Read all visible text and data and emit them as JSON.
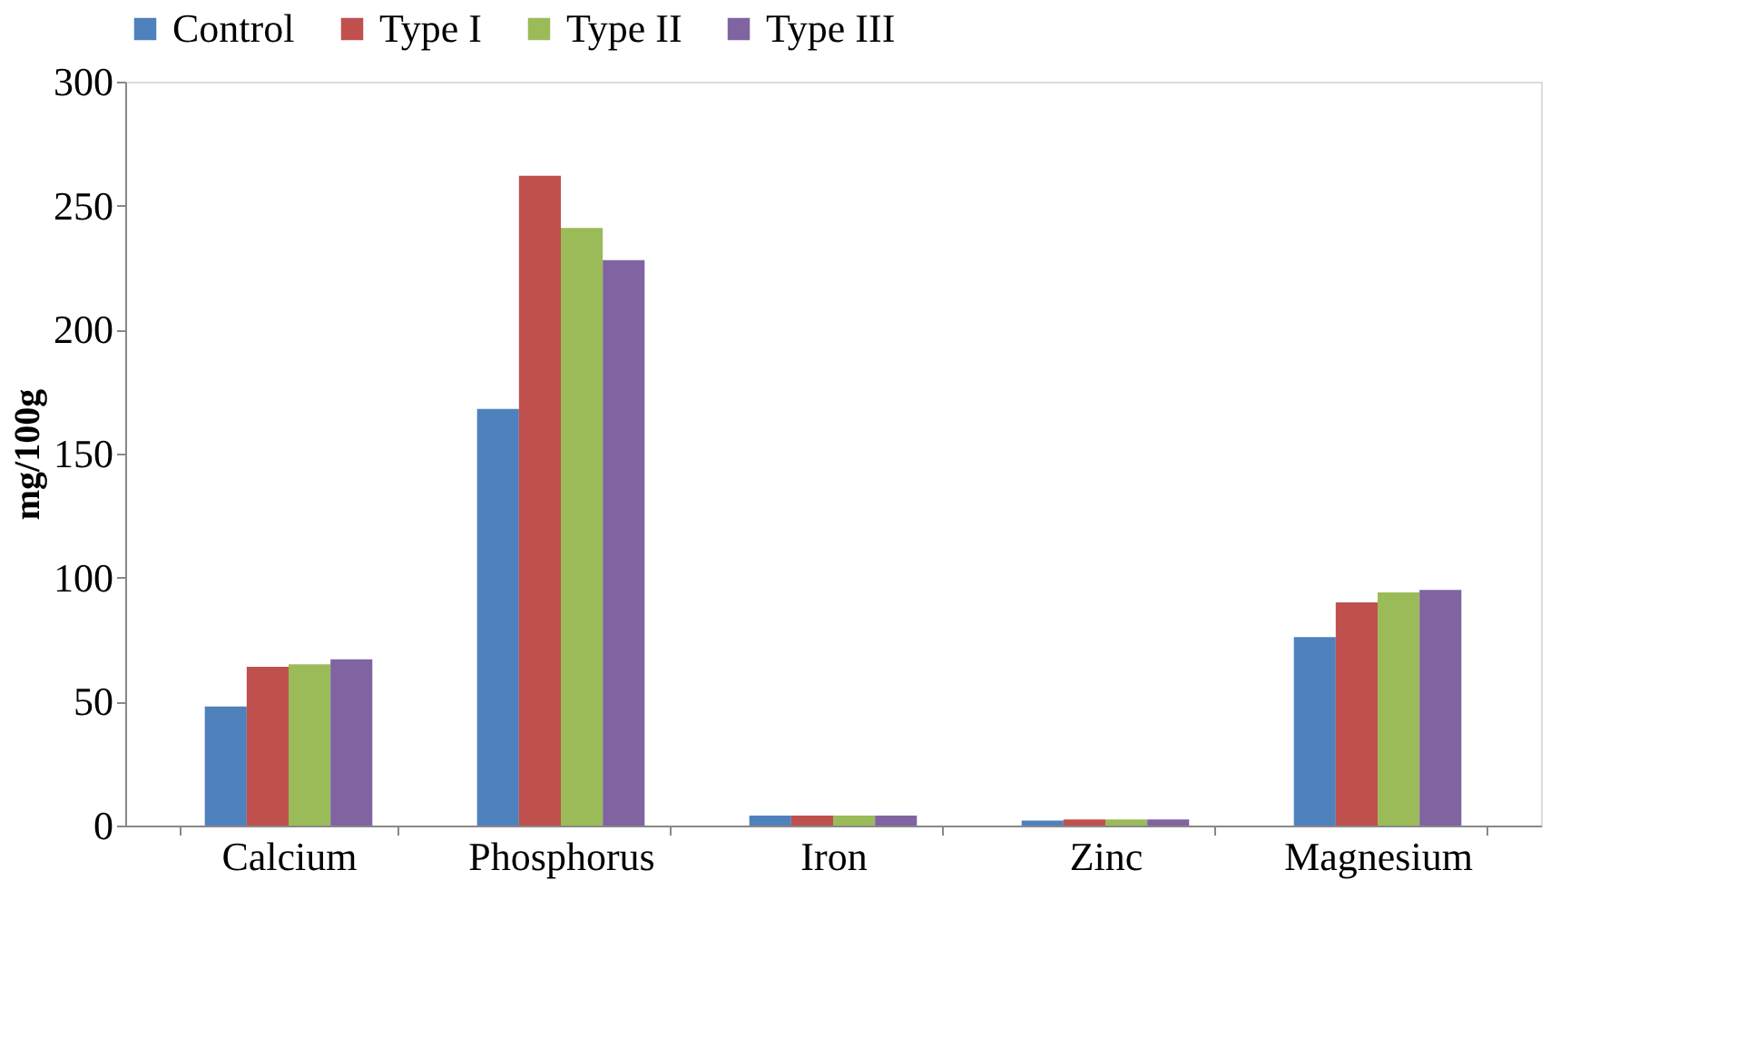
{
  "chart_data": {
    "type": "bar",
    "ylabel": "mg/100g",
    "categories": [
      "Calcium",
      "Phosphorus",
      "Iron",
      "Zinc",
      "Magnesium"
    ],
    "series": [
      {
        "name": "Control",
        "color": "#4f81bd",
        "values": [
          48,
          168,
          4,
          2,
          76
        ]
      },
      {
        "name": "Type I",
        "color": "#c0504d",
        "values": [
          64,
          262,
          4,
          2.5,
          90
        ]
      },
      {
        "name": "Type II",
        "color": "#9bbb59",
        "values": [
          65,
          241,
          4,
          2.5,
          94
        ]
      },
      {
        "name": "Type III",
        "color": "#8064a2",
        "values": [
          67,
          228,
          4,
          2.5,
          95
        ]
      }
    ],
    "ylim": [
      0,
      300
    ],
    "yticks": [
      0,
      50,
      100,
      150,
      200,
      250,
      300
    ],
    "grid": false,
    "legend": "top"
  }
}
